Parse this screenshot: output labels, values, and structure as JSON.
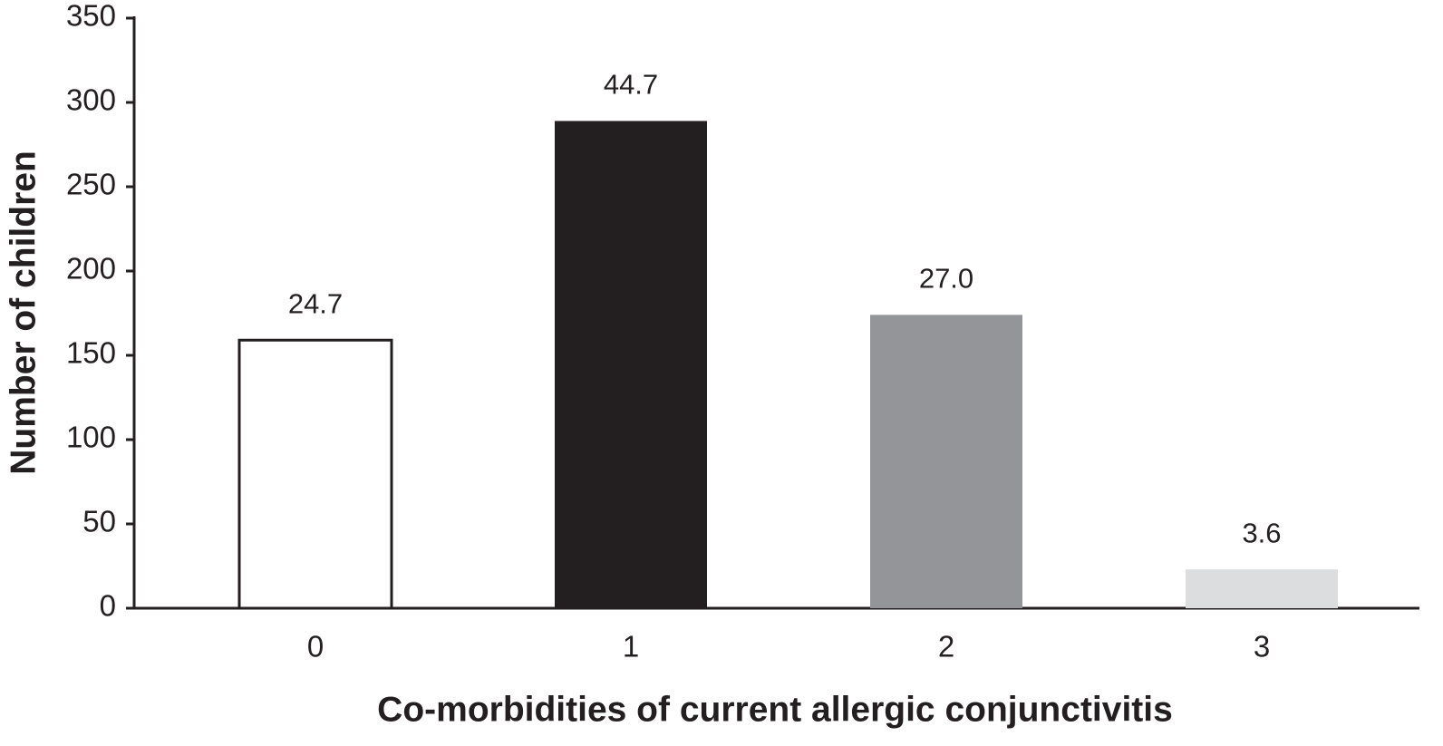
{
  "chart_data": {
    "type": "bar",
    "x_label": "Co-morbidities of current allergic conjunctivitis",
    "y_label": "Number of children",
    "categories": [
      "0",
      "1",
      "2",
      "3"
    ],
    "values": [
      159,
      289,
      174,
      23
    ],
    "annotations": [
      "24.7",
      "44.7",
      "27.0",
      "3.6"
    ],
    "colors": [
      "#ffffff",
      "#231f20",
      "#939598",
      "#dcddde"
    ],
    "ylim": [
      0,
      350
    ],
    "yticks": [
      0,
      50,
      100,
      150,
      200,
      250,
      300,
      350
    ],
    "grid": false
  }
}
